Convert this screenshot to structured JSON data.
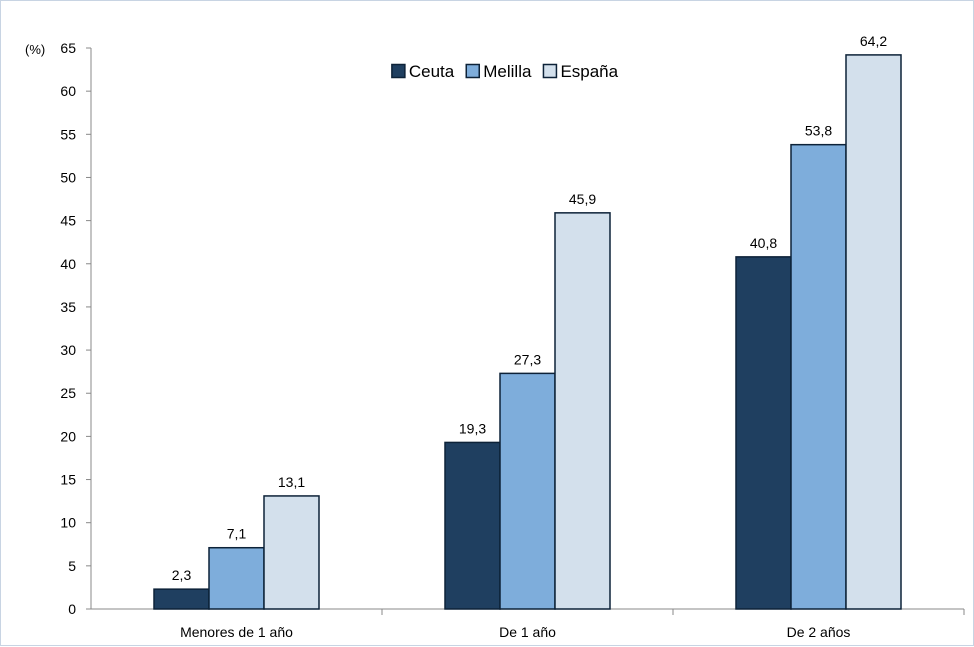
{
  "chart_data": {
    "type": "bar",
    "ylabel": "(%)",
    "categories": [
      "Menores de 1 año",
      "De 1 año",
      "De 2 años"
    ],
    "series": [
      {
        "name": "Ceuta",
        "values": [
          2.3,
          19.3,
          40.8
        ],
        "labels": [
          "2,3",
          "19,3",
          "40,8"
        ],
        "color": "#1f3f60"
      },
      {
        "name": "Melilla",
        "values": [
          7.1,
          27.3,
          53.8
        ],
        "labels": [
          "7,1",
          "27,3",
          "53,8"
        ],
        "color": "#7eaddb"
      },
      {
        "name": "España",
        "values": [
          13.1,
          45.9,
          64.2
        ],
        "labels": [
          "13,1",
          "45,9",
          "64,2"
        ],
        "color": "#d3e0ec"
      }
    ],
    "ylim": [
      0,
      65
    ],
    "yticks": [
      0,
      5,
      10,
      15,
      20,
      25,
      30,
      35,
      40,
      45,
      50,
      55,
      60,
      65
    ],
    "grid": false,
    "legend": "top-center"
  }
}
